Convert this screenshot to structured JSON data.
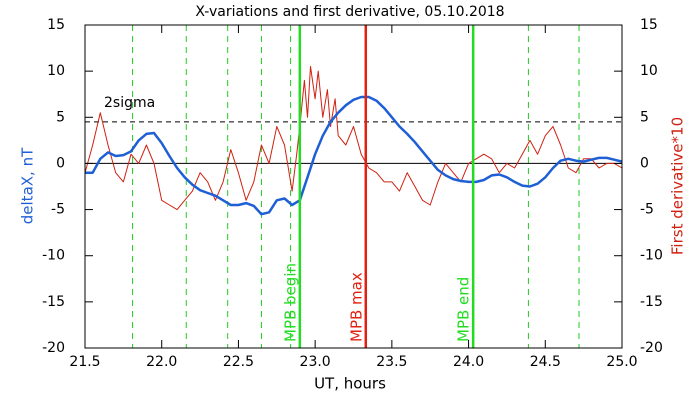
{
  "chart_data": {
    "type": "line",
    "title": "X-variations and first derivative, 05.10.2018",
    "xlabel": "UT, hours",
    "ylabel": "deltaX, nT",
    "y2label": "First derivative*10",
    "xlim": [
      21.5,
      25.0
    ],
    "xticks": [
      21.5,
      {
        "value": 22,
        "label": "22.0"
      },
      22.5,
      {
        "value": 23,
        "label": "23.0"
      },
      23.5,
      {
        "value": 24,
        "label": "24.0"
      },
      24.5,
      {
        "value": 25,
        "label": "25.0"
      }
    ],
    "ylim": [
      -20,
      15
    ],
    "yticks": [
      -20,
      -15,
      -10,
      -5,
      0,
      5,
      10,
      15
    ],
    "y2lim": [
      -20,
      15
    ],
    "y2ticks": [
      -20,
      -15,
      -10,
      -5,
      0,
      5,
      10,
      15
    ],
    "series": [
      {
        "name": "deltaX",
        "color": "#1f5fd6",
        "x": [
          21.5,
          21.55,
          21.6,
          21.65,
          21.7,
          21.75,
          21.8,
          21.85,
          21.9,
          21.95,
          22.0,
          22.05,
          22.1,
          22.15,
          22.2,
          22.25,
          22.3,
          22.35,
          22.4,
          22.45,
          22.5,
          22.55,
          22.6,
          22.65,
          22.7,
          22.75,
          22.8,
          22.85,
          22.9,
          22.95,
          23.0,
          23.05,
          23.1,
          23.15,
          23.2,
          23.25,
          23.3,
          23.35,
          23.4,
          23.45,
          23.5,
          23.55,
          23.6,
          23.65,
          23.7,
          23.75,
          23.8,
          23.85,
          23.9,
          23.95,
          24.0,
          24.05,
          24.1,
          24.15,
          24.2,
          24.25,
          24.3,
          24.35,
          24.4,
          24.45,
          24.5,
          24.55,
          24.6,
          24.65,
          24.7,
          24.75,
          24.8,
          24.85,
          24.9,
          24.95,
          25.0
        ],
        "values": [
          -1,
          -1,
          0.5,
          1.2,
          0.8,
          0.9,
          1.3,
          2.5,
          3.2,
          3.3,
          2.2,
          0.8,
          -0.5,
          -1.5,
          -2.3,
          -2.9,
          -3.2,
          -3.5,
          -4.0,
          -4.5,
          -4.5,
          -4.3,
          -4.6,
          -5.5,
          -5.3,
          -4.0,
          -3.8,
          -4.5,
          -4.0,
          -1.5,
          1.0,
          3.0,
          4.5,
          5.5,
          6.3,
          6.9,
          7.2,
          7.2,
          6.8,
          6.0,
          5.0,
          4.0,
          3.2,
          2.3,
          1.3,
          0.3,
          -0.7,
          -1.3,
          -1.7,
          -1.9,
          -2.0,
          -2.0,
          -1.8,
          -1.3,
          -1.2,
          -1.5,
          -2.0,
          -2.4,
          -2.5,
          -2.2,
          -1.5,
          -0.5,
          0.3,
          0.5,
          0.3,
          0.2,
          0.4,
          0.6,
          0.6,
          0.4,
          0.2
        ]
      },
      {
        "name": "First derivative*10",
        "color": "#d02010",
        "axis": "y2",
        "x": [
          21.5,
          21.55,
          21.6,
          21.65,
          21.7,
          21.75,
          21.8,
          21.85,
          21.9,
          21.95,
          22.0,
          22.05,
          22.1,
          22.15,
          22.2,
          22.25,
          22.3,
          22.35,
          22.4,
          22.45,
          22.5,
          22.55,
          22.6,
          22.65,
          22.7,
          22.75,
          22.8,
          22.85,
          22.88,
          22.9,
          22.93,
          22.95,
          22.97,
          23.0,
          23.02,
          23.05,
          23.08,
          23.1,
          23.13,
          23.15,
          23.2,
          23.25,
          23.3,
          23.35,
          23.4,
          23.45,
          23.5,
          23.55,
          23.6,
          23.65,
          23.7,
          23.75,
          23.8,
          23.85,
          23.9,
          23.95,
          24.0,
          24.05,
          24.1,
          24.15,
          24.2,
          24.25,
          24.3,
          24.35,
          24.4,
          24.45,
          24.5,
          24.55,
          24.6,
          24.65,
          24.7,
          24.75,
          24.8,
          24.85,
          24.9,
          24.95,
          25.0
        ],
        "values": [
          -1,
          2,
          5.5,
          2,
          -1,
          -2,
          1,
          0,
          2,
          0,
          -4,
          -4.5,
          -5,
          -4,
          -3,
          -1,
          -2,
          -4,
          -2,
          1.5,
          -1,
          -4,
          -2,
          2,
          0,
          4,
          2,
          -3,
          1,
          4,
          9,
          5,
          10.5,
          7,
          10,
          5,
          8,
          4,
          7,
          3,
          2,
          4,
          1,
          -0.5,
          -1,
          -2,
          -2,
          -3,
          -1,
          -2.5,
          -4,
          -4.5,
          -2,
          0,
          -1,
          -2,
          0,
          0.5,
          1,
          0.5,
          -1,
          0,
          -0.5,
          1,
          2.5,
          1,
          3,
          4,
          2,
          -0.5,
          -1,
          0.5,
          0.5,
          -0.5,
          0,
          0,
          -0.5
        ]
      }
    ],
    "zero_line": 0,
    "sigma_line": {
      "label": "2sigma",
      "value": 4.5
    },
    "dashed_lines": [
      21.81,
      22.16,
      22.43,
      22.65,
      22.84,
      24.39,
      24.72
    ],
    "markers": [
      {
        "label": "MPB begin",
        "x": 22.9,
        "color": "#22dd22"
      },
      {
        "label": "MPB max",
        "x": 23.33,
        "color": "#e02010"
      },
      {
        "label": "MPB end",
        "x": 24.03,
        "color": "#22dd22"
      }
    ]
  }
}
